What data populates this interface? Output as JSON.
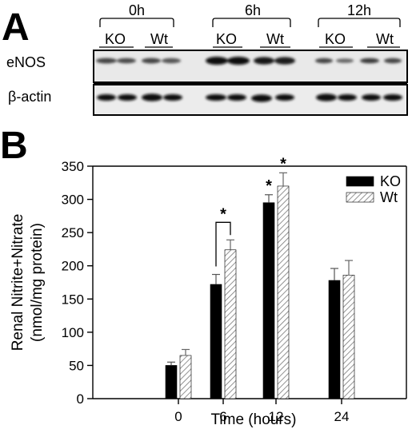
{
  "panel_a": {
    "letter": "A",
    "time_points": [
      "0h",
      "6h",
      "12h"
    ],
    "groups": [
      "KO",
      "Wt"
    ],
    "rows": [
      "eNOS",
      "β-actin"
    ]
  },
  "panel_b": {
    "letter": "B"
  },
  "chart_data": {
    "type": "bar",
    "categories": [
      "0",
      "6",
      "12",
      "24"
    ],
    "xlabel": "Time (hours)",
    "ylabel_line1": "Renal Nitrite+Nitrate",
    "ylabel_line2": "(nmol/mg protein)",
    "ylim": [
      0,
      350
    ],
    "yticks": [
      0,
      50,
      100,
      150,
      200,
      250,
      300,
      350
    ],
    "legend_position": "top-right",
    "series": [
      {
        "name": "KO",
        "values": [
          50,
          172,
          295,
          178
        ],
        "errors": [
          5,
          15,
          12,
          18
        ],
        "fill": "solid-black"
      },
      {
        "name": "Wt",
        "values": [
          65,
          224,
          320,
          186
        ],
        "errors": [
          9,
          15,
          20,
          22
        ],
        "fill": "diagonal-hatch"
      }
    ],
    "annotations": [
      {
        "text": "*",
        "category": "6",
        "type": "bracket"
      },
      {
        "text": "*",
        "category": "12",
        "series": "KO"
      },
      {
        "text": "*",
        "category": "12",
        "series": "Wt"
      }
    ]
  }
}
